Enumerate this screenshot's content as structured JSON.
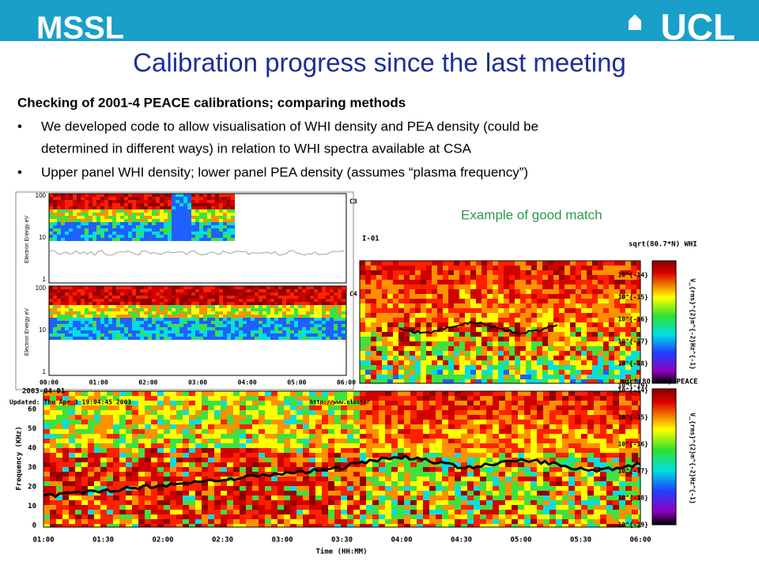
{
  "header": {
    "left_logo": "MSSL",
    "right_logo": "UCL"
  },
  "title": "Calibration progress since the last meeting",
  "body": {
    "heading": "Checking of 2001-4 PEACE calibrations; comparing methods",
    "bullets": [
      [
        "We developed code to allow visualisation of WHI density and PEA density (could be",
        "determined in different ways) in relation to WHI spectra available at CSA"
      ],
      [
        "Upper panel WHI density; lower panel PEA density (assumes “plasma frequency”)"
      ]
    ]
  },
  "caption": "Example of good match",
  "inset": {
    "panels": [
      {
        "label": "C3",
        "ylabel": "Electron Energy eV",
        "yticks": [
          "100",
          "10",
          "1"
        ]
      },
      {
        "label": "C4",
        "ylabel": "Electron Energy eV",
        "yticks": [
          "100",
          "10",
          "1"
        ]
      }
    ],
    "xticks": [
      "00:00",
      "01:00",
      "02:00",
      "03:00",
      "04:00",
      "05:00",
      "06:00"
    ],
    "date": "2003-04-01"
  },
  "main": {
    "updated": "Updated: Thu Apr  3 19:04:45 2003",
    "url": "http://www.cluster",
    "fragment": "I-01",
    "upper_label": "sqrt(80.7*N) WHI",
    "lower_label": "sqrt(80.7*N) PEACE",
    "ylabel": "Frequency (KHz)",
    "yticks": [
      "60",
      "50",
      "40",
      "30",
      "20",
      "10",
      "0"
    ],
    "xticks": [
      "01:00",
      "01:30",
      "02:00",
      "02:30",
      "03:00",
      "03:30",
      "04:00",
      "04:30",
      "05:00",
      "05:30",
      "06:00"
    ],
    "xlabel": "Time (HH:MM)",
    "colorbar_ticks": [
      "10^{-14}",
      "10^{-15}",
      "10^{-16}",
      "10^{-17}",
      "10^{-18}",
      "10^{-19}"
    ],
    "colorbar_label": "V_{rms}^{2}m^{-2}Hz^{-1}"
  }
}
